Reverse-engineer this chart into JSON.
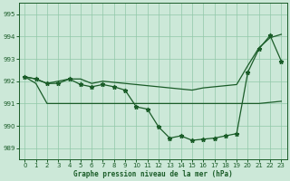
{
  "xlabel": "Graphe pression niveau de la mer (hPa)",
  "bg_color": "#cce8d8",
  "line_color": "#1a5c28",
  "grid_color": "#90c8a8",
  "ylim": [
    988.5,
    995.5
  ],
  "xlim": [
    -0.5,
    23.5
  ],
  "yticks": [
    989,
    990,
    991,
    992,
    993,
    994,
    995
  ],
  "xticks": [
    0,
    1,
    2,
    3,
    4,
    5,
    6,
    7,
    8,
    9,
    10,
    11,
    12,
    13,
    14,
    15,
    16,
    17,
    18,
    19,
    20,
    21,
    22,
    23
  ],
  "main_data": [
    992.2,
    992.1,
    991.9,
    991.9,
    992.1,
    991.85,
    991.75,
    991.85,
    991.75,
    991.6,
    990.85,
    990.75,
    989.95,
    989.45,
    989.55,
    989.35,
    989.4,
    989.45,
    989.55,
    989.65,
    992.4,
    993.45,
    994.05,
    992.9
  ],
  "upper_data": [
    992.2,
    992.1,
    991.9,
    992.0,
    992.1,
    992.1,
    991.9,
    992.0,
    991.95,
    991.9,
    991.85,
    991.8,
    991.75,
    991.7,
    991.65,
    991.6,
    991.7,
    991.75,
    991.8,
    991.85,
    992.7,
    993.5,
    993.95,
    994.1
  ],
  "lower_data": [
    992.2,
    991.9,
    991.0,
    991.0,
    991.0,
    991.0,
    991.0,
    991.0,
    991.0,
    991.0,
    991.0,
    991.0,
    991.0,
    991.0,
    991.0,
    991.0,
    991.0,
    991.0,
    991.0,
    991.0,
    991.0,
    991.0,
    991.05,
    991.1
  ],
  "marker_size": 3.5,
  "line_width": 0.9,
  "tick_fontsize": 5.0,
  "xlabel_fontsize": 5.5
}
